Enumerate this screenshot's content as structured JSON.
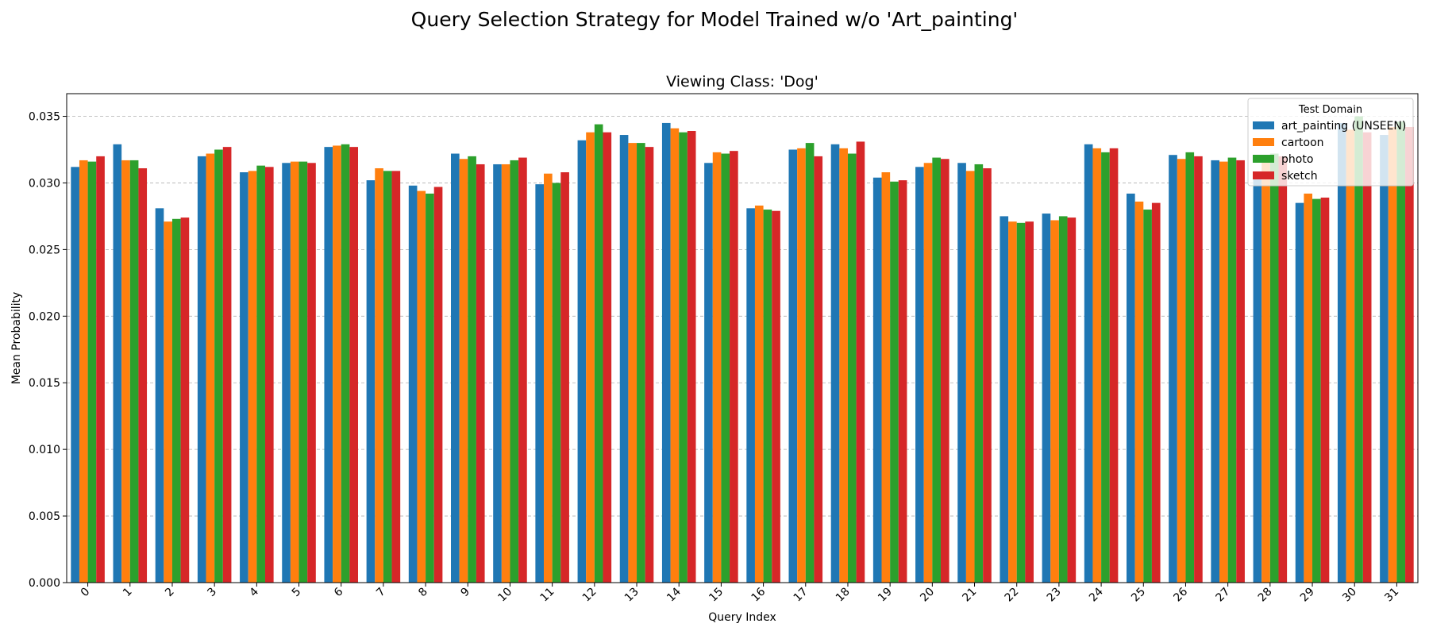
{
  "figure": {
    "suptitle": "Query Selection Strategy for Model Trained w/o 'Art_painting'"
  },
  "chart_data": {
    "type": "bar",
    "title": "Viewing Class: 'Dog'",
    "xlabel": "Query Index",
    "ylabel": "Mean Probability",
    "ylim": [
      0,
      0.0367
    ],
    "yticks": [
      "0.000",
      "0.005",
      "0.010",
      "0.015",
      "0.020",
      "0.025",
      "0.030",
      "0.035"
    ],
    "grid": "y-dashed",
    "legend": {
      "title": "Test Domain",
      "placement": "top-right"
    },
    "categories": [
      "0",
      "1",
      "2",
      "3",
      "4",
      "5",
      "6",
      "7",
      "8",
      "9",
      "10",
      "11",
      "12",
      "13",
      "14",
      "15",
      "16",
      "17",
      "18",
      "19",
      "20",
      "21",
      "22",
      "23",
      "24",
      "25",
      "26",
      "27",
      "28",
      "29",
      "30",
      "31"
    ],
    "series": [
      {
        "name": "art_painting (UNSEEN)",
        "color": "#1f77b4",
        "values": [
          0.0312,
          0.0329,
          0.0281,
          0.032,
          0.0308,
          0.0315,
          0.0327,
          0.0302,
          0.0298,
          0.0322,
          0.0314,
          0.0299,
          0.0332,
          0.0336,
          0.0345,
          0.0315,
          0.0281,
          0.0325,
          0.0329,
          0.0304,
          0.0312,
          0.0315,
          0.0275,
          0.0277,
          0.0329,
          0.0292,
          0.0321,
          0.0317,
          0.0306,
          0.0285,
          0.0345,
          0.0336
        ]
      },
      {
        "name": "cartoon",
        "color": "#ff7f0e",
        "values": [
          0.0317,
          0.0317,
          0.0271,
          0.0322,
          0.0309,
          0.0316,
          0.0328,
          0.0311,
          0.0294,
          0.0318,
          0.0314,
          0.0307,
          0.0338,
          0.033,
          0.0341,
          0.0323,
          0.0283,
          0.0326,
          0.0326,
          0.0308,
          0.0315,
          0.0309,
          0.0271,
          0.0272,
          0.0326,
          0.0286,
          0.0318,
          0.0316,
          0.0318,
          0.0292,
          0.034,
          0.0342
        ]
      },
      {
        "name": "photo",
        "color": "#2ca02c",
        "values": [
          0.0316,
          0.0317,
          0.0273,
          0.0325,
          0.0313,
          0.0316,
          0.0329,
          0.0309,
          0.0292,
          0.032,
          0.0317,
          0.03,
          0.0344,
          0.033,
          0.0338,
          0.0322,
          0.028,
          0.033,
          0.0322,
          0.0301,
          0.0319,
          0.0314,
          0.027,
          0.0275,
          0.0323,
          0.028,
          0.0323,
          0.0319,
          0.0322,
          0.0288,
          0.035,
          0.0346
        ]
      },
      {
        "name": "sketch",
        "color": "#d62728",
        "values": [
          0.032,
          0.0311,
          0.0274,
          0.0327,
          0.0312,
          0.0315,
          0.0327,
          0.0309,
          0.0297,
          0.0314,
          0.0319,
          0.0308,
          0.0338,
          0.0327,
          0.0339,
          0.0324,
          0.0279,
          0.032,
          0.0331,
          0.0302,
          0.0318,
          0.0311,
          0.0271,
          0.0274,
          0.0326,
          0.0285,
          0.032,
          0.0317,
          0.032,
          0.0289,
          0.0338,
          0.0342
        ]
      }
    ]
  }
}
